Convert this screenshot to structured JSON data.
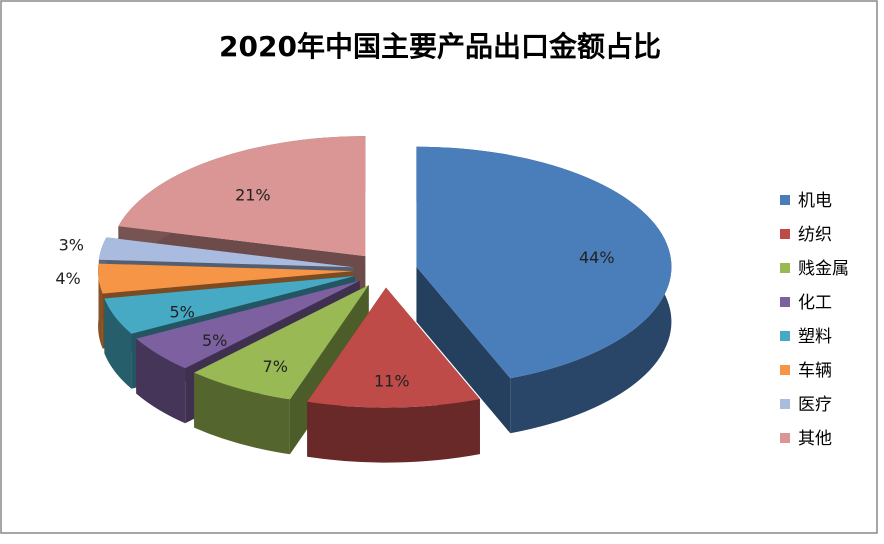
{
  "chart_data": {
    "type": "pie3d",
    "title": "2020年中国主要产品出口金额占比",
    "categories": [
      "机电",
      "纺织",
      "贱金属",
      "化工",
      "塑料",
      "车辆",
      "医疗",
      "其他"
    ],
    "values": [
      44,
      11,
      7,
      5,
      5,
      4,
      3,
      21
    ],
    "value_labels": [
      "44%",
      "11%",
      "7%",
      "5%",
      "5%",
      "4%",
      "3%",
      "21%"
    ],
    "colors": [
      "#4a7ebb",
      "#be4b48",
      "#98b954",
      "#7d60a0",
      "#46aac5",
      "#f69545",
      "#a9bce0",
      "#d99694"
    ],
    "legend": "right"
  }
}
